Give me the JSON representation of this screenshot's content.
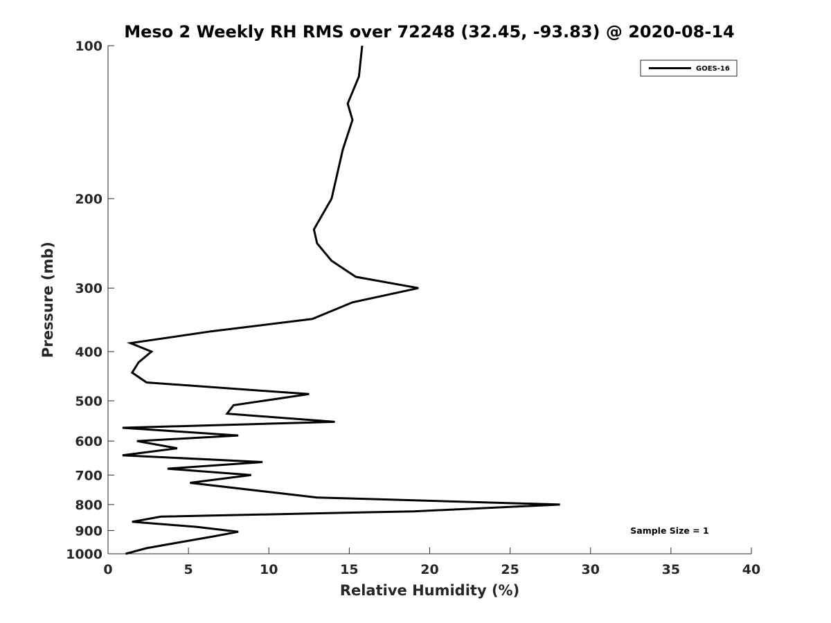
{
  "chart_data": {
    "type": "line",
    "title": "Meso 2 Weekly RH RMS over 72248 (32.45, -93.83) @ 2020-08-14",
    "xlabel": "Relative Humidity (%)",
    "ylabel": "Pressure (mb)",
    "xlim": [
      0,
      40
    ],
    "ylim": [
      100,
      1000
    ],
    "y_scale": "log",
    "y_reversed": true,
    "xticks": [
      0,
      5,
      10,
      15,
      20,
      25,
      30,
      35,
      40
    ],
    "yticks": [
      100,
      200,
      300,
      400,
      500,
      600,
      700,
      800,
      900,
      1000
    ],
    "grid": false,
    "legend_position": "top-right",
    "annotation": "Sample Size = 1",
    "series": [
      {
        "name": "GOES-16",
        "color": "#000000",
        "x": [
          15.8,
          15.6,
          14.9,
          15.2,
          14.6,
          13.9,
          12.8,
          13.0,
          13.9,
          15.4,
          19.3,
          15.2,
          12.7,
          6.4,
          1.4,
          2.7,
          1.9,
          1.5,
          2.4,
          12.5,
          7.8,
          7.4,
          14.1,
          0.9,
          8.1,
          1.8,
          4.3,
          0.9,
          9.6,
          3.7,
          8.9,
          5.1,
          13.0,
          28.1,
          19.0,
          3.3,
          1.5,
          5.5,
          8.1,
          6.5,
          4.4,
          2.4,
          1.1
        ],
        "y": [
          100,
          115,
          130,
          140,
          160,
          200,
          230,
          245,
          265,
          285,
          300,
          320,
          345,
          365,
          385,
          400,
          420,
          440,
          460,
          485,
          510,
          530,
          550,
          565,
          585,
          600,
          620,
          640,
          660,
          680,
          700,
          725,
          775,
          800,
          825,
          845,
          865,
          885,
          905,
          925,
          950,
          975,
          1000
        ]
      }
    ]
  }
}
